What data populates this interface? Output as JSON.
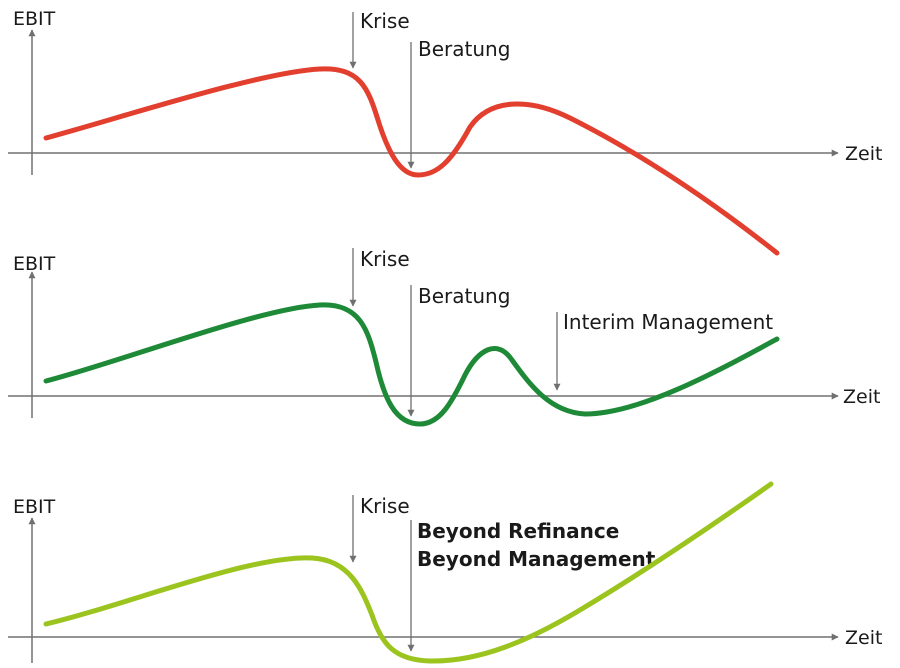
{
  "colors": {
    "red": "#e23f2f",
    "dark_green": "#1e8a38",
    "light_green": "#9cc41e",
    "axis": "#707070",
    "text": "#1a1a1a"
  },
  "panels": [
    {
      "y_axis_label": "EBIT",
      "x_axis_label": "Zeit",
      "markers": [
        {
          "label": "Krise"
        },
        {
          "label": "Beratung"
        }
      ]
    },
    {
      "y_axis_label": "EBIT",
      "x_axis_label": "Zeit",
      "markers": [
        {
          "label": "Krise"
        },
        {
          "label": "Beratung"
        },
        {
          "label": "Interim Management"
        }
      ]
    },
    {
      "y_axis_label": "EBIT",
      "x_axis_label": "Zeit",
      "markers": [
        {
          "label": "Krise"
        },
        {
          "label": "Beyond Refinance"
        }
      ],
      "extra_label": "Beyond Management"
    }
  ]
}
